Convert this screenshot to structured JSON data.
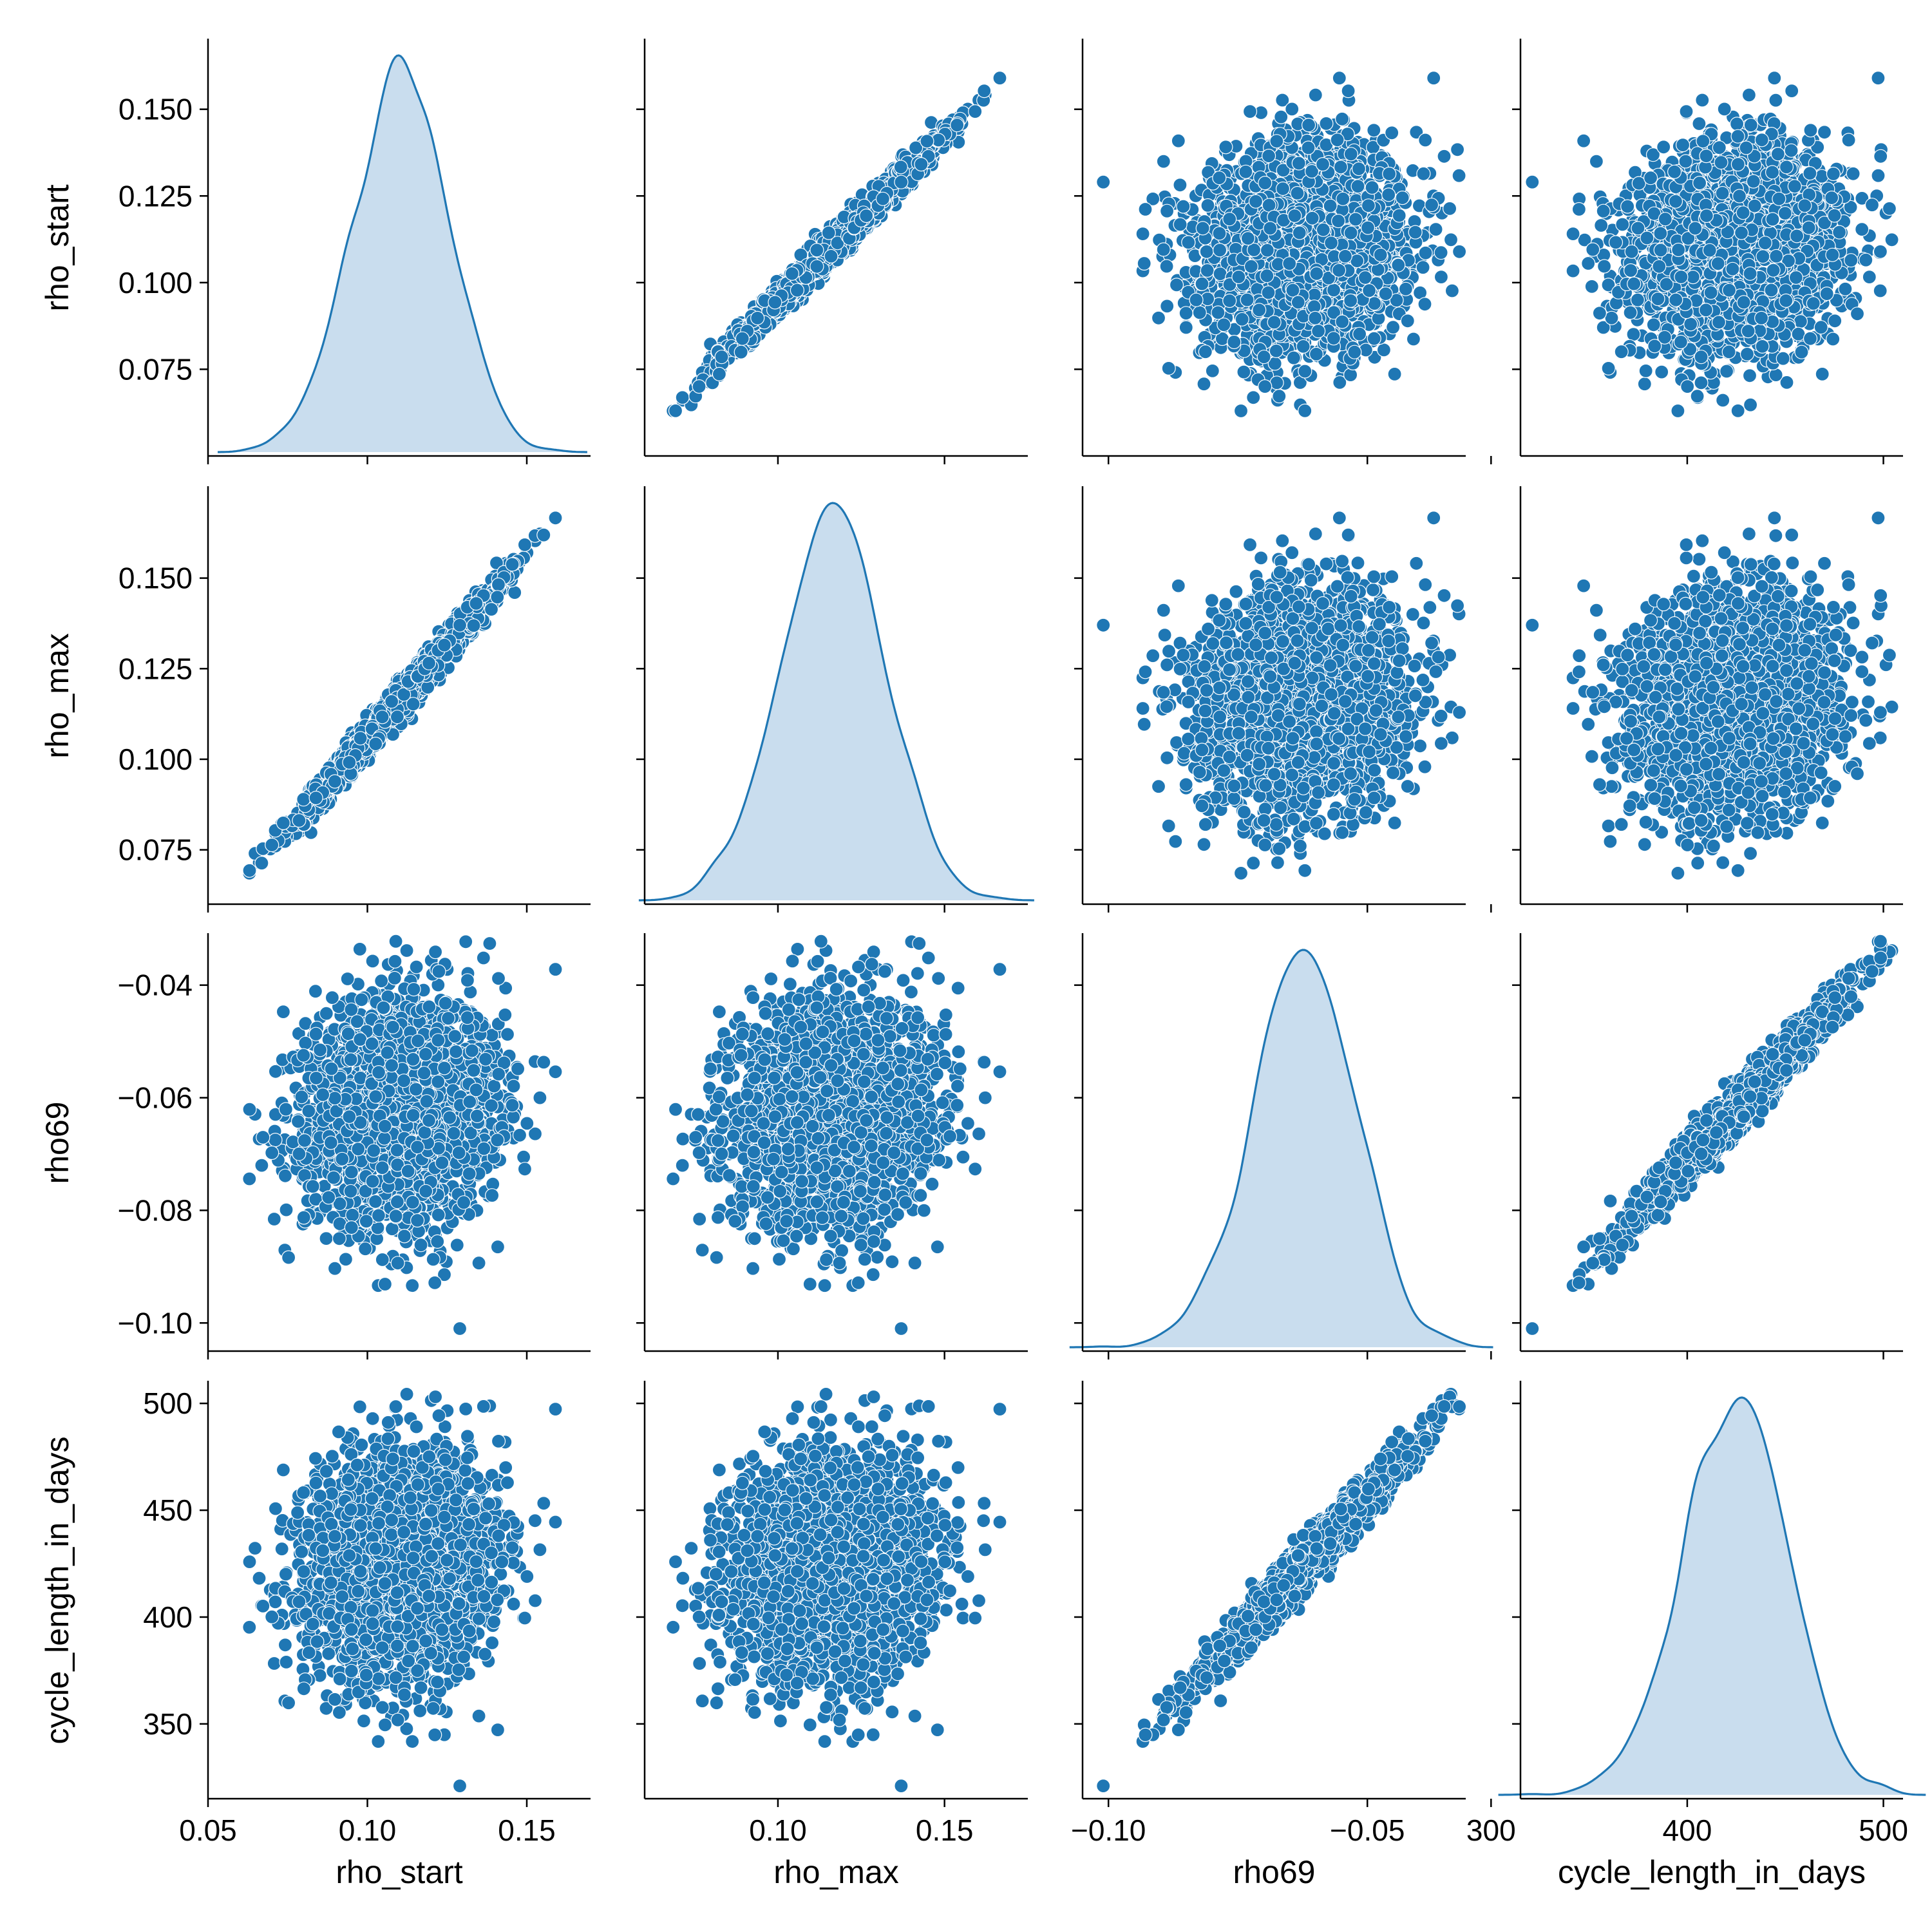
{
  "chart_data": {
    "type": "pairplot",
    "variables": [
      "rho_start",
      "rho_max",
      "rho69",
      "cycle_length_in_days"
    ],
    "axis_ranges": {
      "rho_start": [
        0.05,
        0.17
      ],
      "rho_max": [
        0.06,
        0.175
      ],
      "rho69": [
        -0.105,
        -0.031
      ],
      "cycle_length_in_days": [
        315,
        510
      ]
    },
    "y_ticks": {
      "rho_start": [
        "0.075",
        "0.100",
        "0.125",
        "0.150"
      ],
      "rho_max": [
        "0.075",
        "0.100",
        "0.125",
        "0.150"
      ],
      "rho69": [
        "−0.10",
        "−0.08",
        "−0.06",
        "−0.04"
      ],
      "cycle_length_in_days": [
        "350",
        "400",
        "450",
        "500"
      ]
    },
    "x_ticks": {
      "rho_start": [
        "0.05",
        "0.10",
        "0.15"
      ],
      "rho_max": [
        "0.10",
        "0.15"
      ],
      "rho69": [
        "−0.10",
        "−0.05"
      ],
      "cycle_length_in_days": [
        "300",
        "400",
        "500"
      ]
    },
    "y_tick_values": {
      "rho_start": [
        0.075,
        0.1,
        0.125,
        0.15
      ],
      "rho_max": [
        0.075,
        0.1,
        0.125,
        0.15
      ],
      "rho69": [
        -0.1,
        -0.08,
        -0.06,
        -0.04
      ],
      "cycle_length_in_days": [
        350,
        400,
        450,
        500
      ]
    },
    "x_tick_values": {
      "rho_start": [
        0.05,
        0.1,
        0.15
      ],
      "rho_max": [
        0.1,
        0.15
      ],
      "rho69": [
        -0.1,
        -0.05
      ],
      "cycle_length_in_days": [
        300,
        400,
        500
      ]
    },
    "distributions": {
      "rho_start": {
        "mean": 0.111,
        "sd": 0.015
      },
      "rho_max": {
        "mean": 0.117,
        "sd": 0.0155
      },
      "rho69": {
        "mean": -0.062,
        "sd": 0.0098
      },
      "cycle_length_in_days": {
        "mean": 425,
        "sd": 26
      }
    },
    "correlations": {
      "rho_start_vs_rho_max": 0.99,
      "rho69_vs_cycle_length_in_days": 0.98,
      "rho_start_vs_rho69": 0.1,
      "rho_start_vs_cycle_length_in_days": 0.1
    },
    "n_points": 2500,
    "outlier": {
      "rho_start": 0.129,
      "rho_max": 0.137,
      "rho69": -0.101,
      "cycle_length_in_days": 321
    },
    "colors": {
      "points": "#1f77b4",
      "kde_line": "#1f77b4",
      "kde_fill": "#c6dbed"
    }
  }
}
